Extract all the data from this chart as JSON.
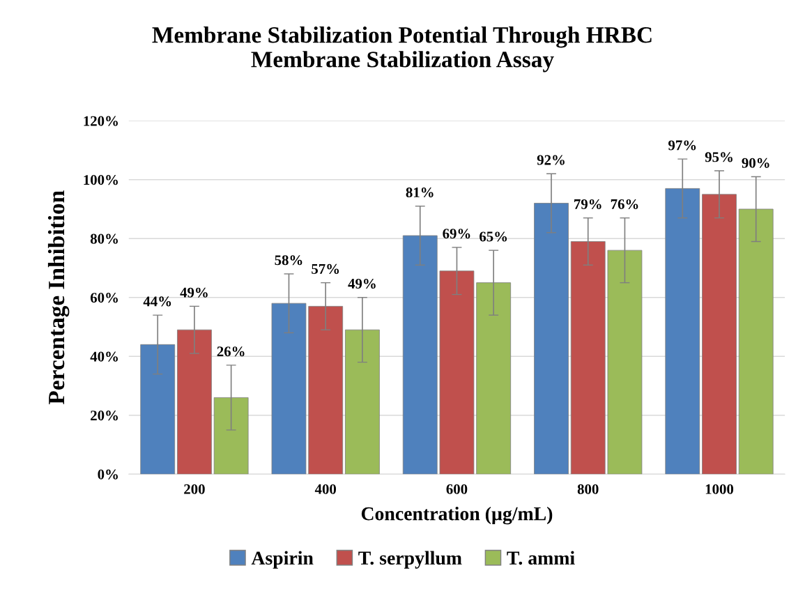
{
  "chart_data": {
    "type": "bar",
    "title": "Membrane Stabilization Potential Through HRBC\nMembrane Stabilization Assay",
    "xlabel": "Concentration (µg/mL)",
    "ylabel": "Percentage Inhibition",
    "categories": [
      "200",
      "400",
      "600",
      "800",
      "1000"
    ],
    "series": [
      {
        "name": "Aspirin",
        "color": "#4f81bd",
        "values": [
          44,
          58,
          81,
          92,
          97
        ],
        "errors": [
          10,
          10,
          10,
          10,
          10
        ],
        "value_labels": [
          "44%",
          "58%",
          "81%",
          "92%",
          "97%"
        ]
      },
      {
        "name": "T. serpyllum",
        "color": "#c0504d",
        "values": [
          49,
          57,
          69,
          79,
          95
        ],
        "errors": [
          8,
          8,
          8,
          8,
          8
        ],
        "value_labels": [
          "49%",
          "57%",
          "69%",
          "79%",
          "95%"
        ]
      },
      {
        "name": "T. ammi",
        "color": "#9bbb59",
        "values": [
          26,
          49,
          65,
          76,
          90
        ],
        "errors": [
          11,
          11,
          11,
          11,
          11
        ],
        "value_labels": [
          "26%",
          "49%",
          "65%",
          "76%",
          "90%"
        ]
      }
    ],
    "ylim": [
      0,
      120
    ],
    "yticks": [
      {
        "value": 0,
        "label": "0%"
      },
      {
        "value": 20,
        "label": "20%"
      },
      {
        "value": 40,
        "label": "40%"
      },
      {
        "value": 60,
        "label": "60%"
      },
      {
        "value": 80,
        "label": "80%"
      },
      {
        "value": 100,
        "label": "100%"
      },
      {
        "value": 120,
        "label": "120%"
      }
    ],
    "grid": "y",
    "legend": "bottom"
  }
}
